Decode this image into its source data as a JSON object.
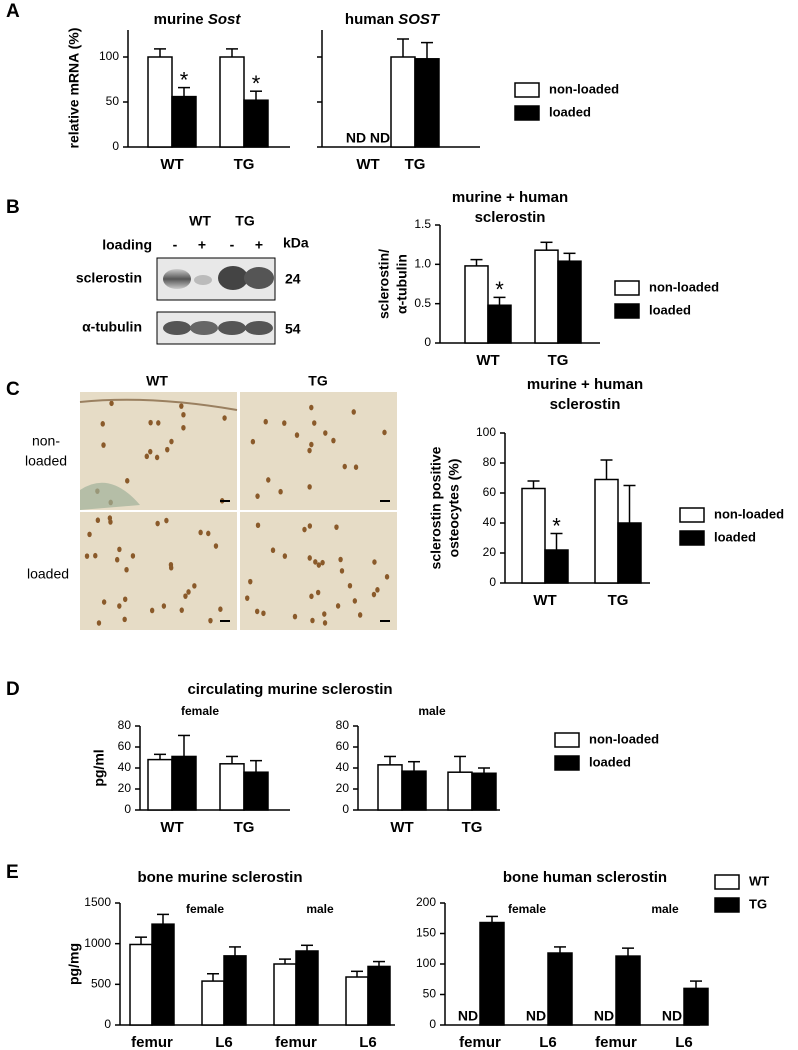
{
  "panels": [
    "A",
    "B",
    "C",
    "D",
    "E"
  ],
  "blot": {
    "groups": [
      "WT",
      "TG"
    ],
    "loading_label": "loading",
    "loading": [
      "-",
      "+",
      "-",
      "+"
    ],
    "unit": "kDa",
    "bands": [
      {
        "name": "sclerostin",
        "size": 24
      },
      {
        "name": "α-tubulin",
        "size": 54
      }
    ]
  },
  "micrographs": {
    "columns": [
      "WT",
      "TG"
    ],
    "rows": [
      [
        "non-",
        "loaded"
      ],
      [
        "loaded"
      ]
    ]
  },
  "chart_data": [
    {
      "type": "bar",
      "title": "murine ",
      "title_italic": "Sost",
      "ylabel": "relative mRNA (%)",
      "categories": [
        "WT",
        "TG"
      ],
      "ylim": [
        0,
        130
      ],
      "yticks": [
        0,
        50,
        100
      ],
      "series": [
        {
          "name": "non-loaded",
          "color": "#ffffff",
          "values": [
            100,
            100
          ],
          "errors": [
            9,
            9
          ]
        },
        {
          "name": "loaded",
          "color": "#000000",
          "values": [
            56,
            52
          ],
          "errors": [
            10,
            10
          ],
          "annotations": [
            "*",
            "*"
          ]
        }
      ]
    },
    {
      "type": "bar",
      "title": "human ",
      "title_italic": "SOST",
      "categories": [
        "WT",
        "TG"
      ],
      "ylim": [
        0,
        130
      ],
      "yticks": [
        0,
        50,
        100
      ],
      "tick_labels": false,
      "legend": true,
      "series": [
        {
          "name": "non-loaded",
          "color": "#ffffff",
          "values": [
            null,
            100
          ],
          "value_labels": [
            "ND",
            null
          ],
          "errors": [
            null,
            20
          ]
        },
        {
          "name": "loaded",
          "color": "#000000",
          "values": [
            null,
            98
          ],
          "value_labels": [
            "ND",
            null
          ],
          "errors": [
            null,
            18
          ]
        }
      ]
    },
    {
      "type": "bar",
      "title": [
        "murine + human",
        "sclerostin"
      ],
      "ylabel": [
        "sclerostin/",
        "α-tubulin"
      ],
      "categories": [
        "WT",
        "TG"
      ],
      "ylim": [
        0,
        1.5
      ],
      "yticks": [
        0,
        0.5,
        {
          "value": 1,
          "label": "1.0"
        },
        1.5
      ],
      "legend": true,
      "series": [
        {
          "name": "non-loaded",
          "color": "#ffffff",
          "values": [
            0.98,
            1.18
          ],
          "errors": [
            0.08,
            0.1
          ]
        },
        {
          "name": "loaded",
          "color": "#000000",
          "values": [
            0.48,
            1.04
          ],
          "errors": [
            0.1,
            0.1
          ],
          "annotations": [
            "*",
            null
          ]
        }
      ]
    },
    {
      "type": "bar",
      "title": [
        "murine + human",
        "sclerostin"
      ],
      "ylabel": [
        "sclerostin positive",
        "osteocytes (%)"
      ],
      "categories": [
        "WT",
        "TG"
      ],
      "ylim": [
        0,
        100
      ],
      "yticks": [
        0,
        20,
        40,
        60,
        80,
        100
      ],
      "legend": true,
      "series": [
        {
          "name": "non-loaded",
          "color": "#ffffff",
          "values": [
            63,
            69
          ],
          "errors": [
            5,
            13
          ]
        },
        {
          "name": "loaded",
          "color": "#000000",
          "values": [
            22,
            40
          ],
          "errors": [
            11,
            25
          ],
          "annotations": [
            "*",
            null
          ]
        }
      ]
    },
    {
      "type": "bar",
      "title": "circulating murine sclerostin",
      "subtitle": "female",
      "ylabel": "pg/ml",
      "categories": [
        "WT",
        "TG"
      ],
      "ylim": [
        0,
        80
      ],
      "yticks": [
        0,
        20,
        40,
        60,
        80
      ],
      "series": [
        {
          "name": "non-loaded",
          "color": "#ffffff",
          "values": [
            48,
            44
          ],
          "errors": [
            5,
            7
          ]
        },
        {
          "name": "loaded",
          "color": "#000000",
          "values": [
            51,
            36
          ],
          "errors": [
            20,
            11
          ]
        }
      ]
    },
    {
      "type": "bar",
      "subtitle": "male",
      "categories": [
        "WT",
        "TG"
      ],
      "ylim": [
        0,
        80
      ],
      "yticks": [
        0,
        20,
        40,
        60,
        80
      ],
      "legend": true,
      "series": [
        {
          "name": "non-loaded",
          "color": "#ffffff",
          "values": [
            43,
            36
          ],
          "errors": [
            8,
            15
          ]
        },
        {
          "name": "loaded",
          "color": "#000000",
          "values": [
            37,
            35
          ],
          "errors": [
            9,
            5
          ]
        }
      ]
    },
    {
      "type": "bar",
      "title": "bone murine sclerostin",
      "ylabel": "pg/mg",
      "group_labels": [
        "female",
        "male"
      ],
      "categories": [
        "femur",
        "L6",
        "femur",
        "L6"
      ],
      "ylim": [
        0,
        1500
      ],
      "yticks": [
        0,
        500,
        1000,
        1500
      ],
      "series": [
        {
          "name": "WT",
          "color": "#ffffff",
          "values": [
            990,
            540,
            750,
            590
          ],
          "errors": [
            90,
            90,
            60,
            70
          ]
        },
        {
          "name": "TG",
          "color": "#000000",
          "values": [
            1240,
            850,
            910,
            720
          ],
          "errors": [
            120,
            110,
            70,
            60
          ]
        }
      ]
    },
    {
      "type": "bar",
      "title": "bone human sclerostin",
      "group_labels": [
        "female",
        "male"
      ],
      "categories": [
        "femur",
        "L6",
        "femur",
        "L6"
      ],
      "ylim": [
        0,
        200
      ],
      "yticks": [
        0,
        50,
        100,
        150,
        200
      ],
      "legend": true,
      "series": [
        {
          "name": "WT",
          "color": "#ffffff",
          "values": [
            null,
            null,
            null,
            null
          ],
          "value_labels": [
            "ND",
            "ND",
            "ND",
            "ND"
          ]
        },
        {
          "name": "TG",
          "color": "#000000",
          "values": [
            168,
            118,
            113,
            60
          ],
          "errors": [
            10,
            10,
            13,
            12
          ]
        }
      ]
    }
  ]
}
